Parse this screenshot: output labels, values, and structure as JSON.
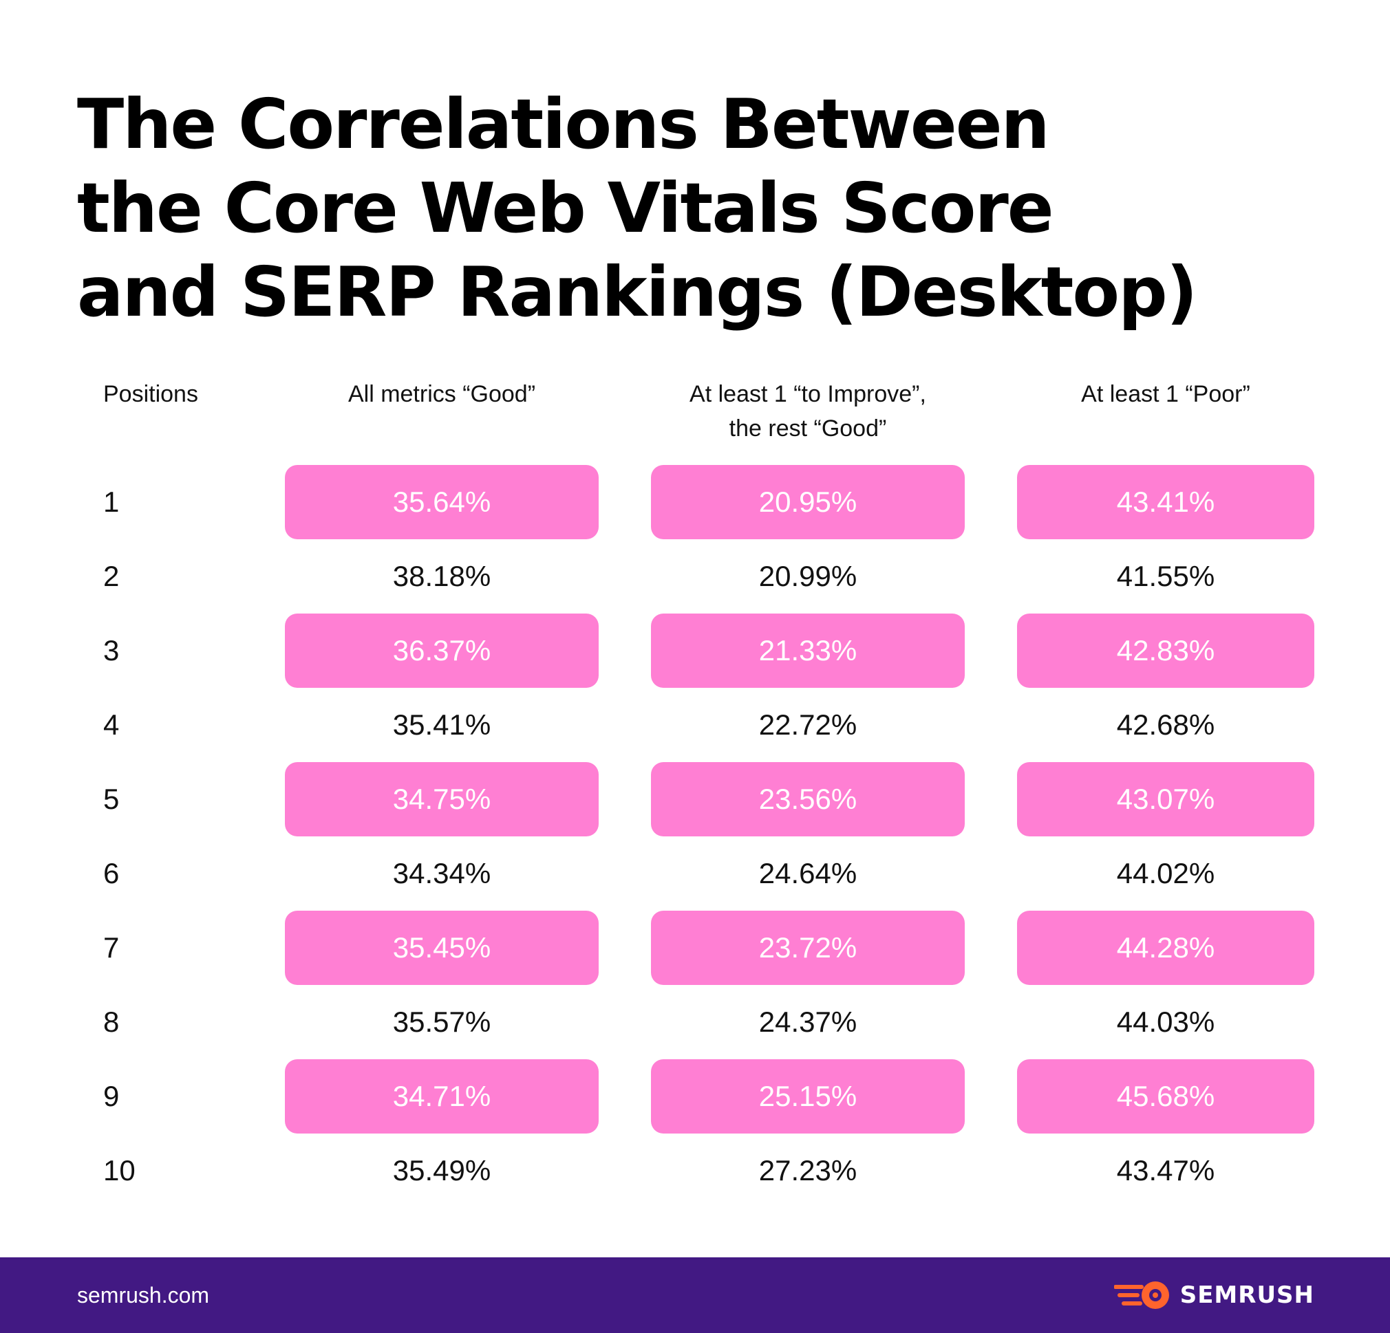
{
  "title_lines": [
    "The Correlations Between",
    "the Core Web Vitals Score",
    "and SERP Rankings (Desktop)"
  ],
  "colors": {
    "highlight": "#FF7FD3",
    "footer": "#421983",
    "logo_orange": "#FF642D"
  },
  "chart_data": {
    "type": "table",
    "title": "The Correlations Between the Core Web Vitals Score and SERP Rankings (Desktop)",
    "row_header": "Positions",
    "columns": [
      {
        "lines": [
          "All metrics “Good”"
        ]
      },
      {
        "lines": [
          "At least 1 “to Improve”,",
          "the rest “Good”"
        ]
      },
      {
        "lines": [
          "At least 1 “Poor”"
        ]
      }
    ],
    "rows": [
      {
        "position": "1",
        "values": [
          "35.64%",
          "20.95%",
          "43.41%"
        ],
        "highlight": true
      },
      {
        "position": "2",
        "values": [
          "38.18%",
          "20.99%",
          "41.55%"
        ],
        "highlight": false
      },
      {
        "position": "3",
        "values": [
          "36.37%",
          "21.33%",
          "42.83%"
        ],
        "highlight": true
      },
      {
        "position": "4",
        "values": [
          "35.41%",
          "22.72%",
          "42.68%"
        ],
        "highlight": false
      },
      {
        "position": "5",
        "values": [
          "34.75%",
          "23.56%",
          "43.07%"
        ],
        "highlight": true
      },
      {
        "position": "6",
        "values": [
          "34.34%",
          "24.64%",
          "44.02%"
        ],
        "highlight": false
      },
      {
        "position": "7",
        "values": [
          "35.45%",
          "23.72%",
          "44.28%"
        ],
        "highlight": true
      },
      {
        "position": "8",
        "values": [
          "35.57%",
          "24.37%",
          "44.03%"
        ],
        "highlight": false
      },
      {
        "position": "9",
        "values": [
          "34.71%",
          "25.15%",
          "45.68%"
        ],
        "highlight": true
      },
      {
        "position": "10",
        "values": [
          "35.49%",
          "27.23%",
          "43.47%"
        ],
        "highlight": false
      }
    ]
  },
  "footer": {
    "url": "semrush.com",
    "logo_text": "SEMRUSH",
    "logo_icon": "semrush-fireball-icon"
  }
}
